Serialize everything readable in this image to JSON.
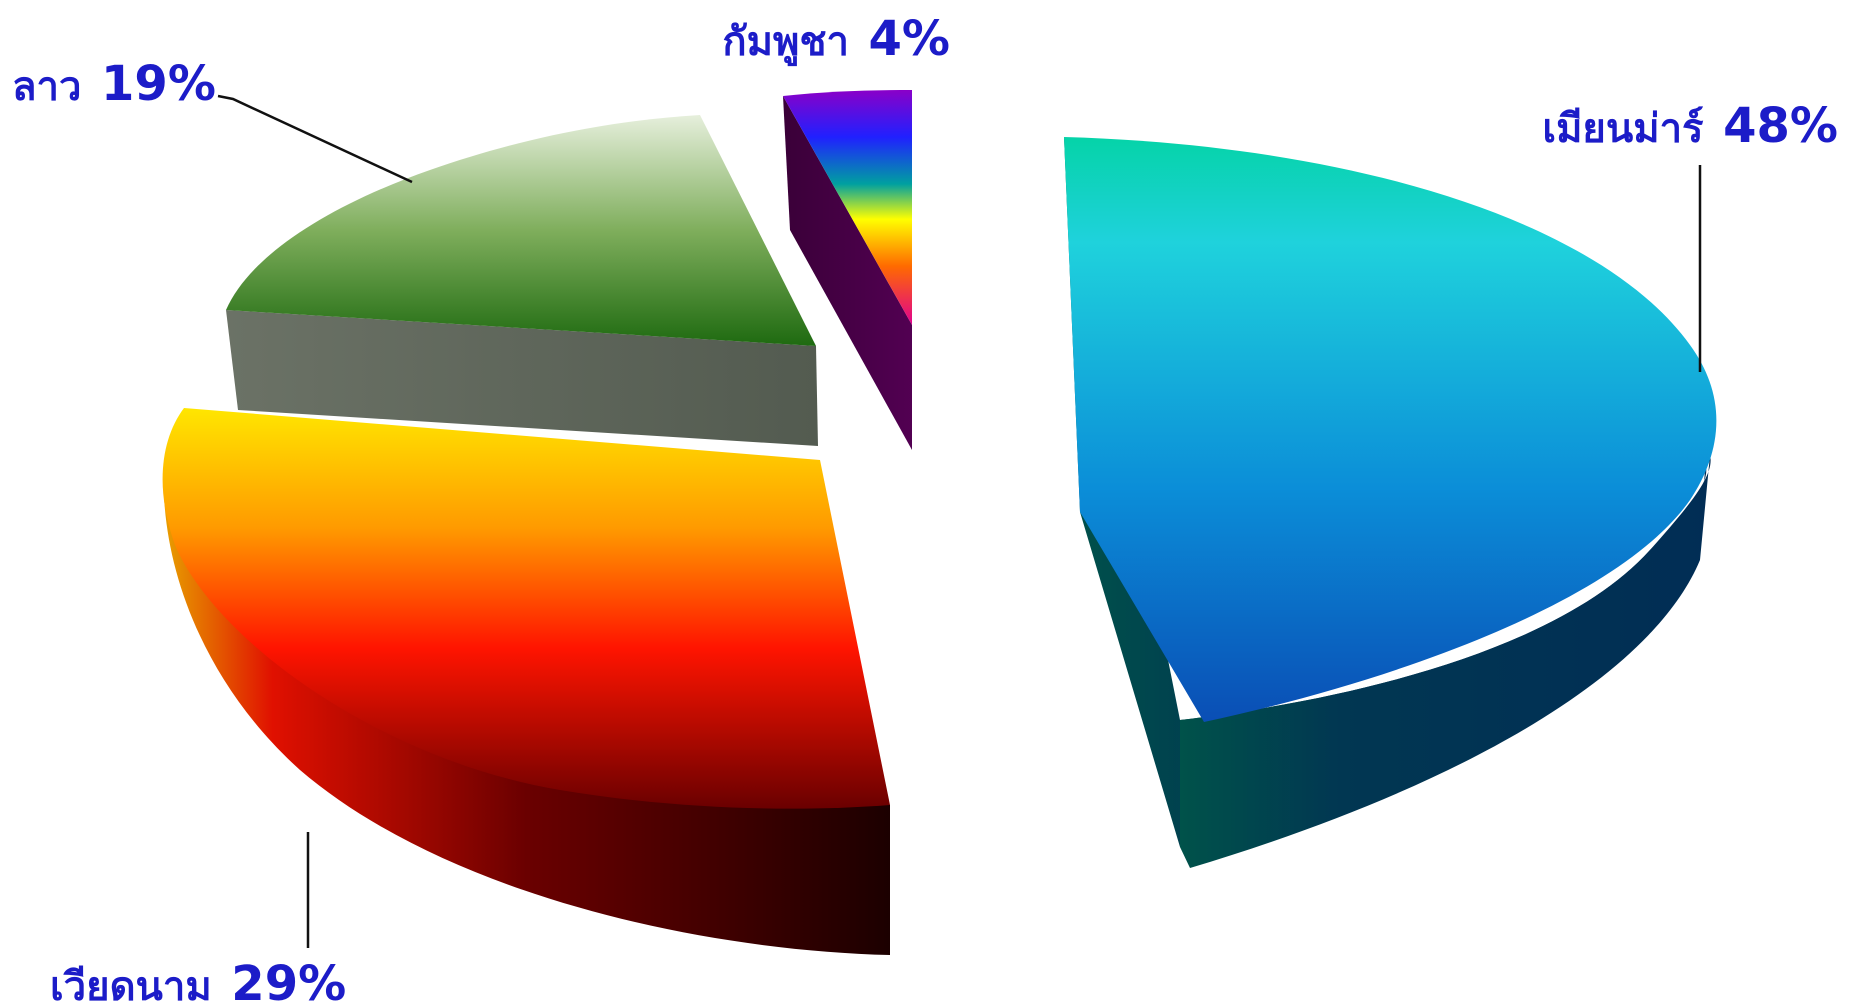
{
  "chart_data": {
    "type": "pie",
    "title": "",
    "style": "3d-exploded",
    "slices": [
      {
        "label": "เมียนม่าร์",
        "value": 48,
        "value_label": "48%",
        "color": "#1aa8dc",
        "side_color": "#012d55"
      },
      {
        "label": "เวียดนาม",
        "value": 29,
        "value_label": "29%",
        "color": "#ff8a00",
        "side_color": "#5a0000"
      },
      {
        "label": "ลาว",
        "value": 19,
        "value_label": "19%",
        "color": "#6fa84a",
        "side_color": "#5b6358"
      },
      {
        "label": "กัมพูชา",
        "value": 4,
        "value_label": "4%",
        "color": "#7b1fd0",
        "side_color": "#4a0047"
      }
    ],
    "label_color": "#1c1cc8"
  }
}
